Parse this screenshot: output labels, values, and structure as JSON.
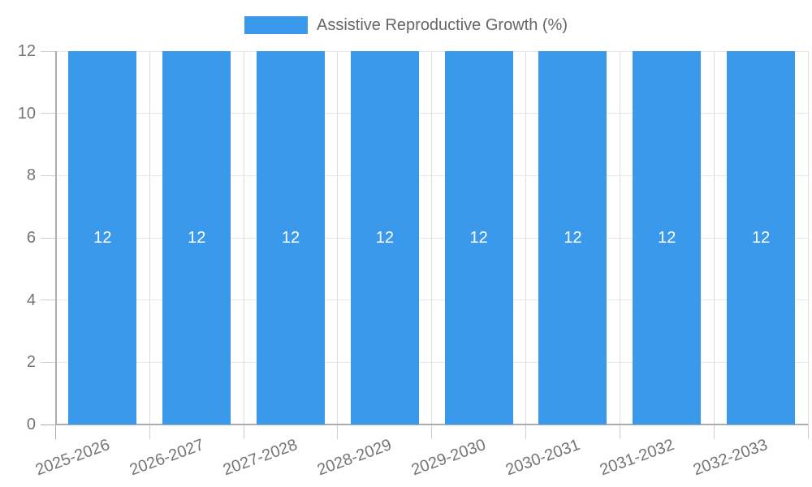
{
  "legend": {
    "label": "Assistive Reproductive Growth (%)"
  },
  "colors": {
    "bar": "#3b99ec",
    "grid_horizontal": "#e8e8e8",
    "grid_vertical": "#dedede",
    "axis": "#adadad",
    "tick": "#cfcfcf",
    "tick_text": "#757575",
    "bar_label_text": "#ffffff",
    "background": "#ffffff"
  },
  "chart_data": {
    "type": "bar",
    "title": "",
    "categories": [
      "2025-2026",
      "2026-2027",
      "2027-2028",
      "2028-2029",
      "2029-2030",
      "2030-2031",
      "2031-2032",
      "2032-2033"
    ],
    "series": [
      {
        "name": "Assistive Reproductive Growth (%)",
        "color": "#3b99ec",
        "values": [
          12,
          12,
          12,
          12,
          12,
          12,
          12,
          12
        ]
      }
    ],
    "value_labels": [
      "12",
      "12",
      "12",
      "12",
      "12",
      "12",
      "12",
      "12"
    ],
    "ylim": [
      0,
      12
    ],
    "yticks": [
      0,
      2,
      4,
      6,
      8,
      10,
      12
    ],
    "grid": true,
    "legend_position": "top",
    "x_label_rotation_deg": -20
  }
}
